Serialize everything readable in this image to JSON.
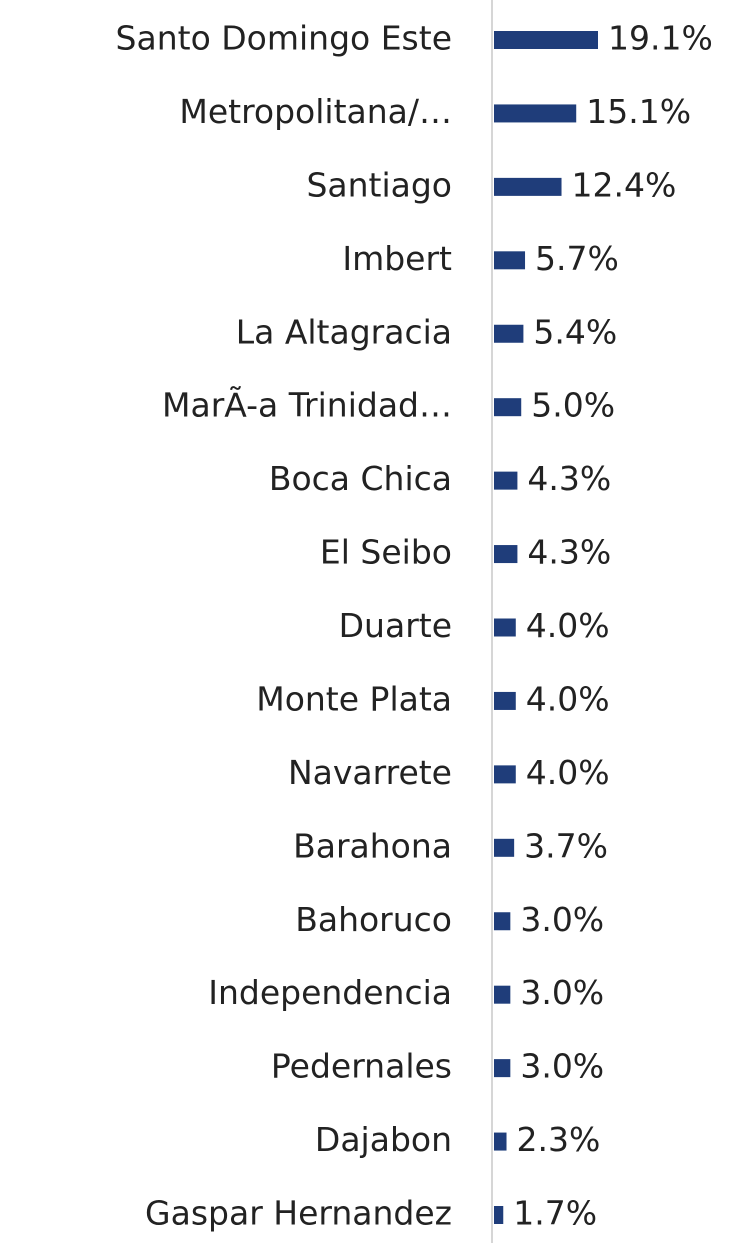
{
  "chart_data": {
    "type": "bar",
    "orientation": "horizontal",
    "categories": [
      "Santo Domingo Este",
      "Metropolitana/…",
      "Santiago",
      "Imbert",
      "La Altagracia",
      "MarÃ-a Trinidad…",
      "Boca Chica",
      "El Seibo",
      "Duarte",
      "Monte Plata",
      "Navarrete",
      "Barahona",
      "Bahoruco",
      "Independencia",
      "Pedernales",
      "Dajabon",
      "Gaspar Hernandez"
    ],
    "values": [
      19.1,
      15.1,
      12.4,
      5.7,
      5.4,
      5.0,
      4.3,
      4.3,
      4.0,
      4.0,
      4.0,
      3.7,
      3.0,
      3.0,
      3.0,
      2.3,
      1.7
    ],
    "value_labels": [
      "19.1%",
      "15.1%",
      "12.4%",
      "5.7%",
      "5.4%",
      "5.0%",
      "4.3%",
      "4.3%",
      "4.0%",
      "4.0%",
      "4.0%",
      "3.7%",
      "3.0%",
      "3.0%",
      "3.0%",
      "2.3%",
      "1.7%"
    ],
    "color": "#1f3d7a"
  }
}
